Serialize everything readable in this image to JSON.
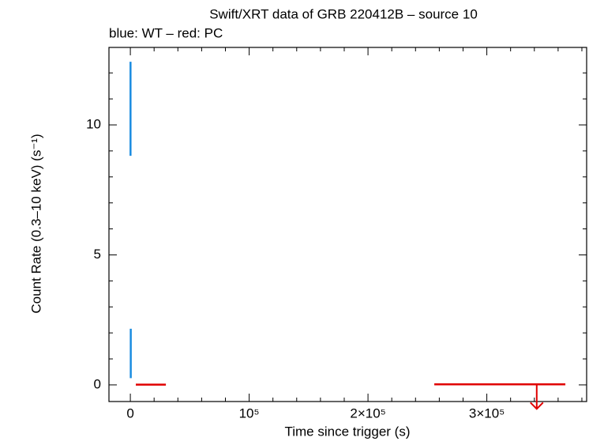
{
  "chart_data": {
    "type": "errorbar",
    "title": "Swift/XRT data of GRB 220412B – source 10",
    "subtitle": "blue: WT – red: PC",
    "x_label": "Time since trigger (s)",
    "y_label": "Count Rate (0.3–10 keV) (s⁻¹)",
    "xlim": [
      -18000,
      384000
    ],
    "ylim": [
      -0.64,
      12.98
    ],
    "xticks": [
      0,
      {
        "value": 100000,
        "label": "10⁵"
      },
      {
        "value": 200000,
        "label": "2×10⁵"
      },
      {
        "value": 300000,
        "label": "3×10⁵"
      }
    ],
    "yticks": [
      0,
      5,
      10
    ],
    "xminorticks": [
      20000,
      40000,
      60000,
      80000,
      120000,
      140000,
      160000,
      180000,
      220000,
      240000,
      260000,
      280000,
      320000,
      340000,
      360000,
      380000
    ],
    "yminorticks": [
      1,
      2,
      3,
      4,
      6,
      7,
      8,
      9,
      11,
      12
    ],
    "series": [
      {
        "color": "#1a8ce0",
        "x": [
          150,
          350
        ],
        "values": [
          10.62,
          1.21
        ],
        "yerr": [
          1.81,
          0.95
        ]
      },
      {
        "color": "#e00000",
        "x": [
          17000,
          342000
        ],
        "xerr_minus": [
          12400,
          86200
        ],
        "xerr_plus": [
          12900,
          24100
        ],
        "values": [
          0.01,
          0.02
        ],
        "upper_limit": [
          false,
          true
        ]
      }
    ]
  }
}
